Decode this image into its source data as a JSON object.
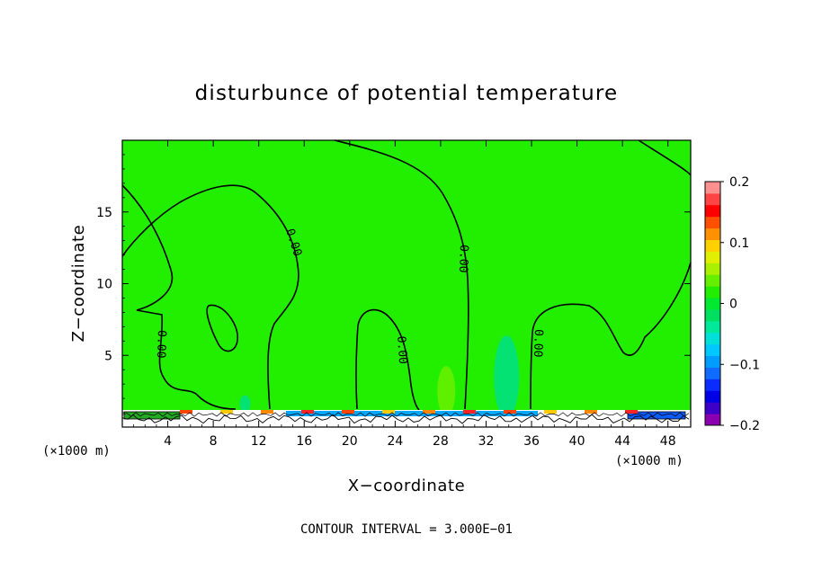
{
  "chart_data": {
    "type": "contour",
    "title": "disturbunce of potential temperature",
    "xlabel": "X−coordinate",
    "ylabel": "Z−coordinate",
    "x_unit": "(×1000 m)",
    "y_unit": "(×1000 m)",
    "xlim": [
      0,
      50
    ],
    "ylim": [
      0,
      20
    ],
    "x_ticks": [
      4,
      8,
      12,
      16,
      20,
      24,
      28,
      32,
      36,
      40,
      44,
      48
    ],
    "y_ticks": [
      5,
      10,
      15
    ],
    "x_tick_labels": [
      "4",
      "8",
      "12",
      "16",
      "20",
      "24",
      "28",
      "32",
      "36",
      "40",
      "44",
      "48"
    ],
    "y_tick_labels": [
      "5",
      "10",
      "15"
    ],
    "contour_interval_text": "CONTOUR INTERVAL = 3.000E−01",
    "contour_label": "0.00",
    "colorbar": {
      "range": [
        -0.2,
        0.2
      ],
      "tick_values": [
        0.2,
        0.1,
        0,
        -0.1,
        -0.2
      ],
      "tick_labels": [
        "0.2",
        "0.1",
        "0",
        "−0.1",
        "−0.2"
      ],
      "colors": [
        "#8a00b0",
        "#3d00c8",
        "#0000e6",
        "#0a2cff",
        "#0f6cff",
        "#009cff",
        "#00c8ff",
        "#00e0d8",
        "#00e89a",
        "#00e060",
        "#00e830",
        "#22ec00",
        "#66f000",
        "#aaf000",
        "#e0f000",
        "#ffd000",
        "#ff9000",
        "#ff5000",
        "#ff0000",
        "#ff4444",
        "#ff9090"
      ]
    },
    "background_color": "#22ee00",
    "features": [
      {
        "kind": "positive_patch",
        "x": 28.5,
        "z": 2.5,
        "color": "#66f000"
      },
      {
        "kind": "negative_patch",
        "x": 33.8,
        "z": 3.5,
        "color": "#00e080"
      },
      {
        "kind": "negative_patch",
        "x": 10.8,
        "z": 1.6,
        "color": "#00e080"
      }
    ]
  }
}
